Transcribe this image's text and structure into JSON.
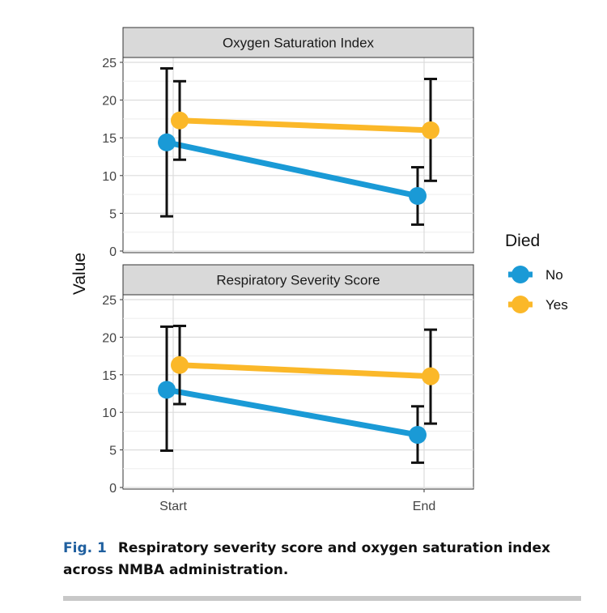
{
  "chart_data": [
    {
      "type": "line",
      "title": "Oxygen Saturation Index",
      "ylabel": "Value",
      "categories": [
        "Start",
        "End"
      ],
      "ylim": [
        0,
        25
      ],
      "yticks": [
        0,
        5,
        10,
        15,
        20,
        25
      ],
      "grid": true,
      "series": [
        {
          "name": "No",
          "color": "#1a9ad6",
          "values": [
            14.4,
            7.3
          ],
          "error_low": [
            4.6,
            3.5
          ],
          "error_high": [
            24.2,
            11.1
          ]
        },
        {
          "name": "Yes",
          "color": "#fbb829",
          "values": [
            17.3,
            16.0
          ],
          "error_low": [
            12.1,
            9.3
          ],
          "error_high": [
            22.5,
            22.8
          ]
        }
      ]
    },
    {
      "type": "line",
      "title": "Respiratory Severity Score",
      "ylabel": "Value",
      "categories": [
        "Start",
        "End"
      ],
      "ylim": [
        0,
        25
      ],
      "yticks": [
        0,
        5,
        10,
        15,
        20,
        25
      ],
      "grid": true,
      "series": [
        {
          "name": "No",
          "color": "#1a9ad6",
          "values": [
            13.0,
            7.0
          ],
          "error_low": [
            4.9,
            3.3
          ],
          "error_high": [
            21.4,
            10.8
          ]
        },
        {
          "name": "Yes",
          "color": "#fbb829",
          "values": [
            16.3,
            14.8
          ],
          "error_low": [
            11.1,
            8.5
          ],
          "error_high": [
            21.5,
            21.0
          ]
        }
      ]
    }
  ],
  "legend": {
    "title": "Died",
    "placement": "right",
    "items": [
      {
        "label": "No",
        "color": "#1a9ad6"
      },
      {
        "label": "Yes",
        "color": "#fbb829"
      }
    ]
  },
  "caption": {
    "label": "Fig. 1",
    "text": "Respiratory severity score and oxygen saturation index across NMBA administration."
  }
}
